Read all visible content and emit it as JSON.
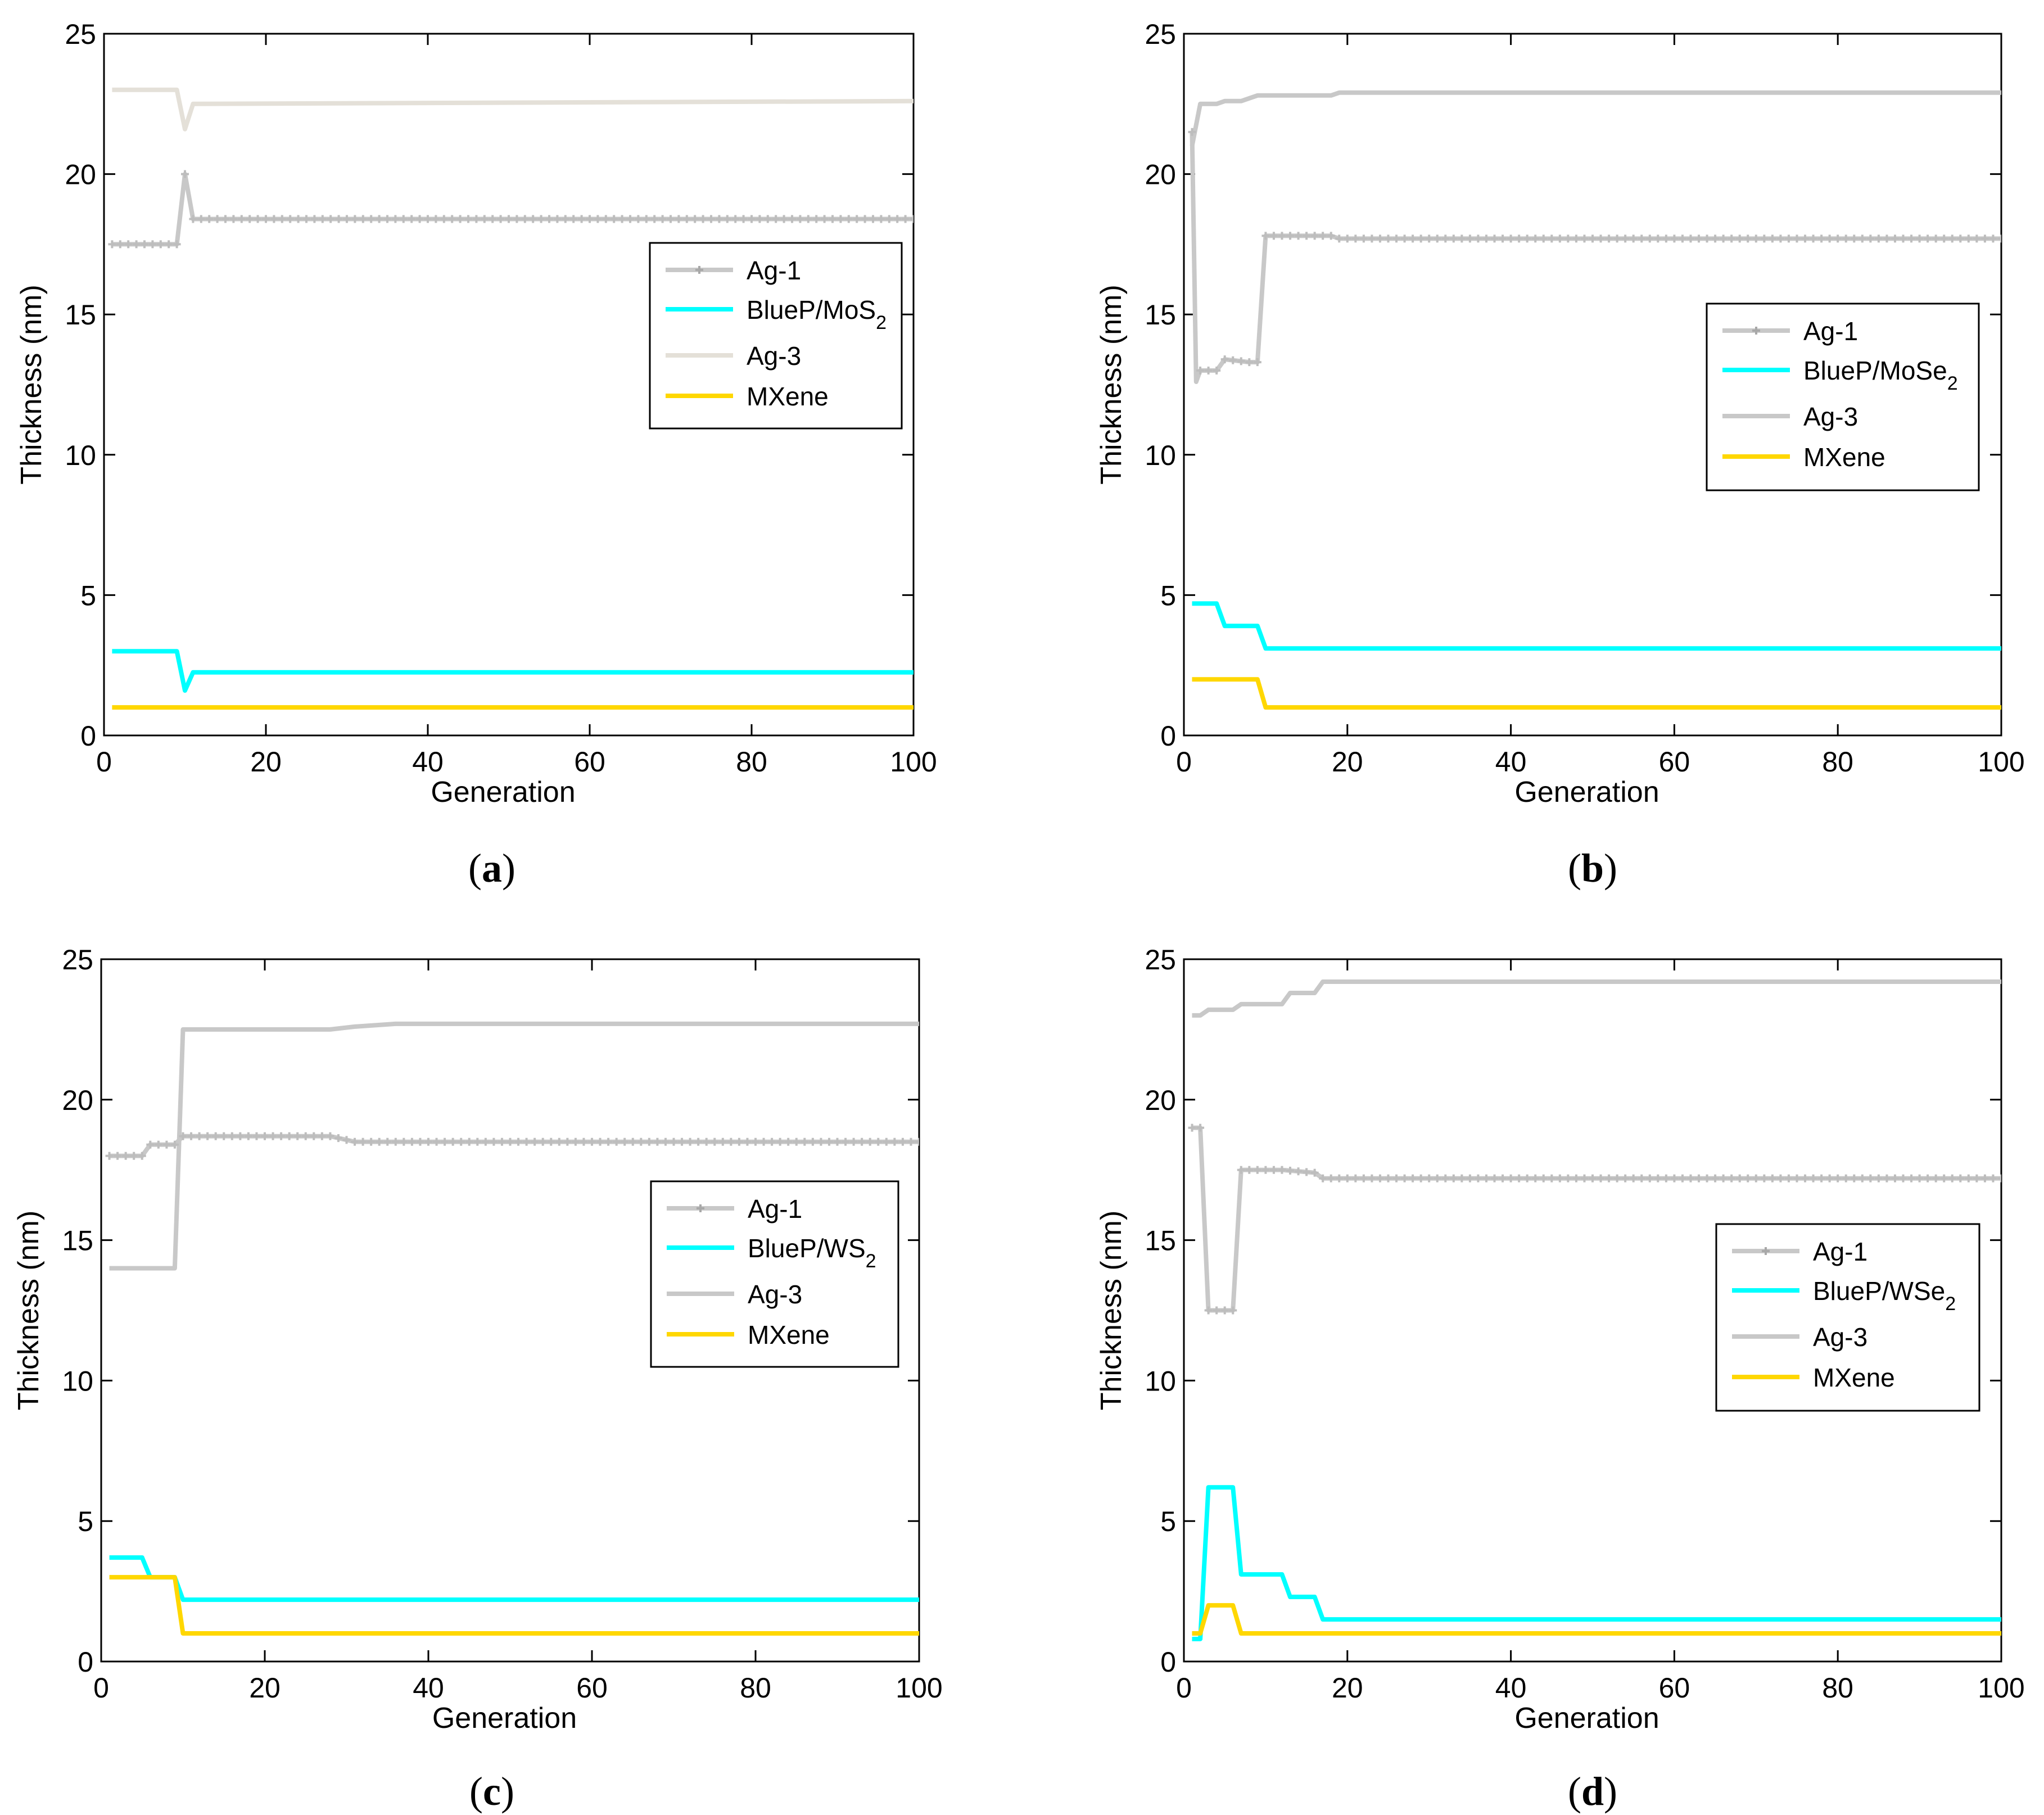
{
  "figure": {
    "panels": [
      "a",
      "b",
      "c",
      "d"
    ]
  },
  "chart_data": [
    {
      "id": "a",
      "type": "line",
      "caption_label": "a",
      "xlabel": "Generation",
      "ylabel": "Thickness (nm)",
      "xlim": [
        0,
        100
      ],
      "ylim": [
        0,
        25
      ],
      "xticks": [
        "0",
        "20",
        "40",
        "60",
        "80",
        "100"
      ],
      "yticks": [
        "0",
        "5",
        "10",
        "15",
        "20",
        "25"
      ],
      "legend_position": "upper-right",
      "series": [
        {
          "name": "Ag-1",
          "color": "#c8c8c8",
          "marker": true,
          "points": [
            [
              1,
              17.5
            ],
            [
              9,
              17.5
            ],
            [
              10,
              20
            ],
            [
              11,
              18.4
            ],
            [
              100,
              18.4
            ]
          ]
        },
        {
          "name": "BlueP/MoS",
          "sub": "2",
          "color": "#00ffff",
          "marker": false,
          "points": [
            [
              1,
              3
            ],
            [
              9,
              3
            ],
            [
              10,
              1.6
            ],
            [
              11,
              2.25
            ],
            [
              100,
              2.25
            ]
          ]
        },
        {
          "name": "Ag-3",
          "color": "#e4e0d8",
          "marker": false,
          "points": [
            [
              1,
              23
            ],
            [
              9,
              23
            ],
            [
              10,
              21.6
            ],
            [
              11,
              22.5
            ],
            [
              100,
              22.6
            ]
          ]
        },
        {
          "name": "MXene",
          "color": "#ffd700",
          "marker": false,
          "points": [
            [
              1,
              1
            ],
            [
              100,
              1
            ]
          ]
        }
      ]
    },
    {
      "id": "b",
      "type": "line",
      "caption_label": "b",
      "xlabel": "Generation",
      "ylabel": "Thickness (nm)",
      "xlim": [
        0,
        100
      ],
      "ylim": [
        0,
        25
      ],
      "xticks": [
        "0",
        "20",
        "40",
        "60",
        "80",
        "100"
      ],
      "yticks": [
        "0",
        "5",
        "10",
        "15",
        "20",
        "25"
      ],
      "legend_position": "center-right",
      "series": [
        {
          "name": "Ag-1",
          "color": "#c8c8c8",
          "marker": true,
          "points": [
            [
              1,
              21.5
            ],
            [
              1.5,
              12.6
            ],
            [
              2,
              13
            ],
            [
              4,
              13
            ],
            [
              5,
              13.4
            ],
            [
              8,
              13.3
            ],
            [
              9,
              13.3
            ],
            [
              10,
              17.8
            ],
            [
              18,
              17.8
            ],
            [
              19,
              17.7
            ],
            [
              100,
              17.7
            ]
          ]
        },
        {
          "name": "BlueP/MoSe",
          "sub": "2",
          "color": "#00ffff",
          "marker": false,
          "points": [
            [
              1,
              4.7
            ],
            [
              4,
              4.7
            ],
            [
              5,
              3.9
            ],
            [
              9,
              3.9
            ],
            [
              10,
              3.1
            ],
            [
              100,
              3.1
            ]
          ]
        },
        {
          "name": "Ag-3",
          "color": "#c8c8c8",
          "marker": false,
          "points": [
            [
              1,
              21
            ],
            [
              2,
              22.5
            ],
            [
              4,
              22.5
            ],
            [
              5,
              22.6
            ],
            [
              7,
              22.6
            ],
            [
              8,
              22.7
            ],
            [
              9,
              22.8
            ],
            [
              18,
              22.8
            ],
            [
              19,
              22.9
            ],
            [
              100,
              22.9
            ]
          ]
        },
        {
          "name": "MXene",
          "color": "#ffd700",
          "marker": false,
          "points": [
            [
              1,
              2
            ],
            [
              9,
              2
            ],
            [
              10,
              1
            ],
            [
              100,
              1
            ]
          ]
        }
      ]
    },
    {
      "id": "c",
      "type": "line",
      "caption_label": "c",
      "xlabel": "Generation",
      "ylabel": "Thickness (nm)",
      "xlim": [
        0,
        100
      ],
      "ylim": [
        0,
        25
      ],
      "xticks": [
        "0",
        "20",
        "40",
        "60",
        "80",
        "100"
      ],
      "yticks": [
        "0",
        "5",
        "10",
        "15",
        "20",
        "25"
      ],
      "legend_position": "center-right",
      "series": [
        {
          "name": "Ag-1",
          "color": "#c8c8c8",
          "marker": true,
          "points": [
            [
              1,
              18
            ],
            [
              5,
              18
            ],
            [
              6,
              18.4
            ],
            [
              9,
              18.4
            ],
            [
              10,
              18.7
            ],
            [
              28,
              18.7
            ],
            [
              31,
              18.5
            ],
            [
              100,
              18.5
            ]
          ]
        },
        {
          "name": "BlueP/WS",
          "sub": "2",
          "color": "#00ffff",
          "marker": false,
          "points": [
            [
              1,
              3.7
            ],
            [
              5,
              3.7
            ],
            [
              6,
              3
            ],
            [
              9,
              3
            ],
            [
              10,
              2.2
            ],
            [
              100,
              2.2
            ]
          ]
        },
        {
          "name": "Ag-3",
          "color": "#c8c8c8",
          "marker": false,
          "points": [
            [
              1,
              14
            ],
            [
              9,
              14
            ],
            [
              10,
              22.5
            ],
            [
              28,
              22.5
            ],
            [
              31,
              22.6
            ],
            [
              36,
              22.7
            ],
            [
              100,
              22.7
            ]
          ]
        },
        {
          "name": "MXene",
          "color": "#ffd700",
          "marker": false,
          "points": [
            [
              1,
              3
            ],
            [
              9,
              3
            ],
            [
              10,
              1
            ],
            [
              100,
              1
            ]
          ]
        }
      ]
    },
    {
      "id": "d",
      "type": "line",
      "caption_label": "d",
      "xlabel": "Generation",
      "ylabel": "Thickness (nm)",
      "xlim": [
        0,
        100
      ],
      "ylim": [
        0,
        25
      ],
      "xticks": [
        "0",
        "20",
        "40",
        "60",
        "80",
        "100"
      ],
      "yticks": [
        "0",
        "5",
        "10",
        "15",
        "20",
        "25"
      ],
      "legend_position": "center-right",
      "series": [
        {
          "name": "Ag-1",
          "color": "#c8c8c8",
          "marker": true,
          "points": [
            [
              1,
              19
            ],
            [
              2,
              19
            ],
            [
              3,
              12.5
            ],
            [
              6,
              12.5
            ],
            [
              7,
              17.5
            ],
            [
              12,
              17.5
            ],
            [
              16,
              17.4
            ],
            [
              17,
              17.2
            ],
            [
              100,
              17.2
            ]
          ]
        },
        {
          "name": "BlueP/WSe",
          "sub": "2",
          "color": "#00ffff",
          "marker": false,
          "points": [
            [
              1,
              0.8
            ],
            [
              2,
              0.8
            ],
            [
              3,
              6.2
            ],
            [
              6,
              6.2
            ],
            [
              7,
              3.1
            ],
            [
              12,
              3.1
            ],
            [
              13,
              2.3
            ],
            [
              16,
              2.3
            ],
            [
              17,
              1.5
            ],
            [
              100,
              1.5
            ]
          ]
        },
        {
          "name": "Ag-3",
          "color": "#c8c8c8",
          "marker": false,
          "points": [
            [
              1,
              23
            ],
            [
              2,
              23
            ],
            [
              3,
              23.2
            ],
            [
              6,
              23.2
            ],
            [
              7,
              23.4
            ],
            [
              12,
              23.4
            ],
            [
              13,
              23.8
            ],
            [
              16,
              23.8
            ],
            [
              17,
              24.2
            ],
            [
              100,
              24.2
            ]
          ]
        },
        {
          "name": "MXene",
          "color": "#ffd700",
          "marker": false,
          "points": [
            [
              1,
              1
            ],
            [
              2,
              1
            ],
            [
              3,
              2
            ],
            [
              6,
              2
            ],
            [
              7,
              1
            ],
            [
              100,
              1
            ]
          ]
        }
      ]
    }
  ]
}
